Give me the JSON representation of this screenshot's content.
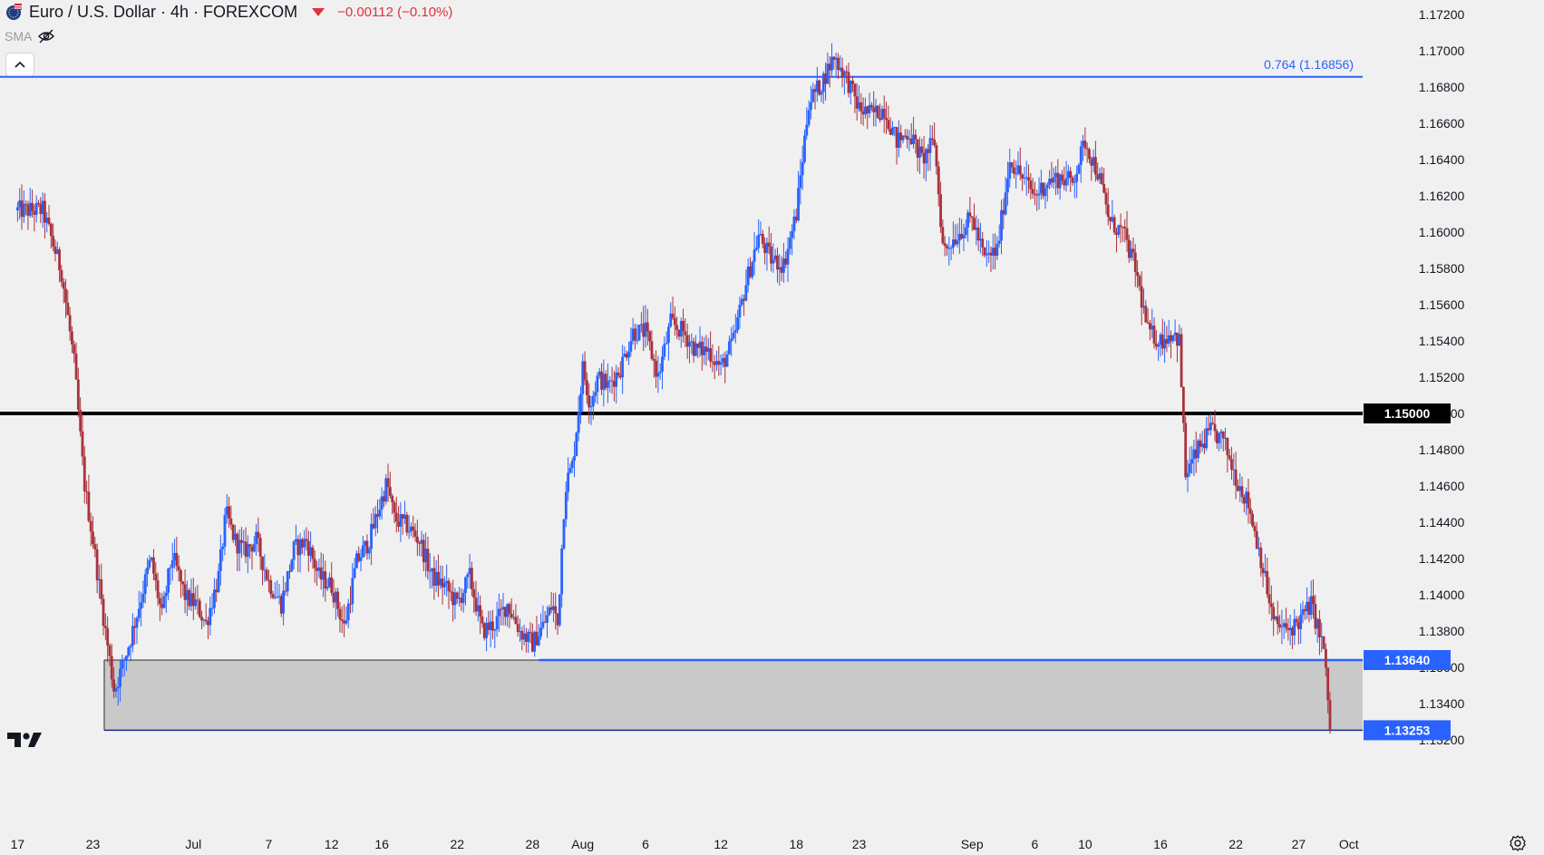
{
  "header": {
    "title": "Euro / U.S. Dollar · 4h · FOREXCOM",
    "change": "−0.00112 (−0.10%)"
  },
  "indicator": {
    "label": "SMA"
  },
  "colors": {
    "up": "#2962ff",
    "down": "#a8323c",
    "fib": "#2962ff",
    "zone": "#c9c9c9",
    "support": "#000000"
  },
  "chart_data": {
    "type": "candlestick",
    "title": "Euro / U.S. Dollar · 4h · FOREXCOM",
    "ylim": [
      1.1308,
      1.1728
    ],
    "y_ticks": [
      "1.13200",
      "1.13400",
      "1.13600",
      "1.13800",
      "1.14000",
      "1.14200",
      "1.14400",
      "1.14600",
      "1.14800",
      "1.15000",
      "1.15200",
      "1.15400",
      "1.15600",
      "1.15800",
      "1.16000",
      "1.16200",
      "1.16400",
      "1.16600",
      "1.16800",
      "1.17000",
      "1.17200"
    ],
    "x_ticks": [
      {
        "label": "17",
        "day": 0
      },
      {
        "label": "23",
        "day": 6
      },
      {
        "label": "Jul",
        "day": 14
      },
      {
        "label": "7",
        "day": 20
      },
      {
        "label": "12",
        "day": 25
      },
      {
        "label": "16",
        "day": 29
      },
      {
        "label": "22",
        "day": 35
      },
      {
        "label": "28",
        "day": 41
      },
      {
        "label": "Aug",
        "day": 45
      },
      {
        "label": "6",
        "day": 50
      },
      {
        "label": "12",
        "day": 56
      },
      {
        "label": "18",
        "day": 62
      },
      {
        "label": "23",
        "day": 67
      },
      {
        "label": "Sep",
        "day": 76
      },
      {
        "label": "6",
        "day": 81
      },
      {
        "label": "10",
        "day": 85
      },
      {
        "label": "16",
        "day": 91
      },
      {
        "label": "22",
        "day": 97
      },
      {
        "label": "27",
        "day": 102
      },
      {
        "label": "Oct",
        "day": 106
      }
    ],
    "x_range": [
      -1.4,
      107.1
    ],
    "last_day": 104.5,
    "fib_level": {
      "value": 1.16856,
      "label": "0.764 (1.16856)"
    },
    "support_level": {
      "value": 1.15,
      "label": "1.15000"
    },
    "zone": {
      "top": 1.1364,
      "bottom": 1.13253,
      "top_label": "1.13640",
      "bottom_label": "1.13253",
      "start_day": 6.9
    },
    "path": [
      [
        0,
        1.1612
      ],
      [
        2,
        1.1612
      ],
      [
        3.5,
        1.1578
      ],
      [
        4.5,
        1.1528
      ],
      [
        5.3,
        1.1462
      ],
      [
        6,
        1.143
      ],
      [
        7,
        1.138
      ],
      [
        7.7,
        1.1347
      ],
      [
        8.4,
        1.1362
      ],
      [
        9,
        1.1376
      ],
      [
        9.6,
        1.1392
      ],
      [
        10.6,
        1.142
      ],
      [
        11.5,
        1.1388
      ],
      [
        12.3,
        1.1422
      ],
      [
        13.4,
        1.1398
      ],
      [
        14.2,
        1.1395
      ],
      [
        15,
        1.1384
      ],
      [
        16,
        1.141
      ],
      [
        16.6,
        1.1445
      ],
      [
        17.3,
        1.143
      ],
      [
        18,
        1.1424
      ],
      [
        19,
        1.143
      ],
      [
        20,
        1.1407
      ],
      [
        21,
        1.1395
      ],
      [
        22,
        1.1425
      ],
      [
        23,
        1.143
      ],
      [
        24,
        1.141
      ],
      [
        25,
        1.1405
      ],
      [
        26,
        1.1382
      ],
      [
        27,
        1.1418
      ],
      [
        28,
        1.143
      ],
      [
        29.4,
        1.1462
      ],
      [
        30,
        1.1442
      ],
      [
        31,
        1.1438
      ],
      [
        32,
        1.143
      ],
      [
        33,
        1.141
      ],
      [
        34,
        1.1405
      ],
      [
        35,
        1.1395
      ],
      [
        36,
        1.141
      ],
      [
        37,
        1.138
      ],
      [
        38,
        1.1384
      ],
      [
        39,
        1.1395
      ],
      [
        40,
        1.138
      ],
      [
        41,
        1.1373
      ],
      [
        42,
        1.1385
      ],
      [
        42.6,
        1.1395
      ],
      [
        43,
        1.1383
      ],
      [
        43.6,
        1.146
      ],
      [
        44.2,
        1.1472
      ],
      [
        45,
        1.1525
      ],
      [
        45.6,
        1.1505
      ],
      [
        46.2,
        1.152
      ],
      [
        47,
        1.1515
      ],
      [
        48,
        1.1525
      ],
      [
        49,
        1.1545
      ],
      [
        50,
        1.1545
      ],
      [
        51,
        1.152
      ],
      [
        52,
        1.155
      ],
      [
        53,
        1.1545
      ],
      [
        54,
        1.1535
      ],
      [
        55,
        1.1535
      ],
      [
        56,
        1.1525
      ],
      [
        57,
        1.154
      ],
      [
        58,
        1.1572
      ],
      [
        59,
        1.1598
      ],
      [
        60,
        1.1585
      ],
      [
        61,
        1.1582
      ],
      [
        62,
        1.161
      ],
      [
        63,
        1.1672
      ],
      [
        64,
        1.1682
      ],
      [
        65,
        1.1697
      ],
      [
        66,
        1.1685
      ],
      [
        67,
        1.1668
      ],
      [
        68,
        1.1665
      ],
      [
        69,
        1.1668
      ],
      [
        70,
        1.165
      ],
      [
        71,
        1.1655
      ],
      [
        72,
        1.164
      ],
      [
        73,
        1.165
      ],
      [
        73.7,
        1.159
      ],
      [
        75,
        1.16
      ],
      [
        76,
        1.1608
      ],
      [
        77,
        1.1585
      ],
      [
        78,
        1.159
      ],
      [
        79,
        1.164
      ],
      [
        80,
        1.163
      ],
      [
        81,
        1.162
      ],
      [
        82,
        1.1628
      ],
      [
        83,
        1.163
      ],
      [
        84,
        1.1628
      ],
      [
        85,
        1.165
      ],
      [
        86,
        1.1633
      ],
      [
        87,
        1.1605
      ],
      [
        88,
        1.16
      ],
      [
        89,
        1.158
      ],
      [
        90,
        1.1545
      ],
      [
        91,
        1.154
      ],
      [
        92,
        1.1545
      ],
      [
        92.5,
        1.154
      ],
      [
        93,
        1.1466
      ],
      [
        94,
        1.148
      ],
      [
        95,
        1.149
      ],
      [
        96,
        1.1485
      ],
      [
        97,
        1.1465
      ],
      [
        98,
        1.145
      ],
      [
        99,
        1.142
      ],
      [
        100,
        1.1385
      ],
      [
        101,
        1.138
      ],
      [
        102,
        1.1385
      ],
      [
        103,
        1.1395
      ],
      [
        104,
        1.137
      ],
      [
        104.5,
        1.1327
      ]
    ]
  }
}
